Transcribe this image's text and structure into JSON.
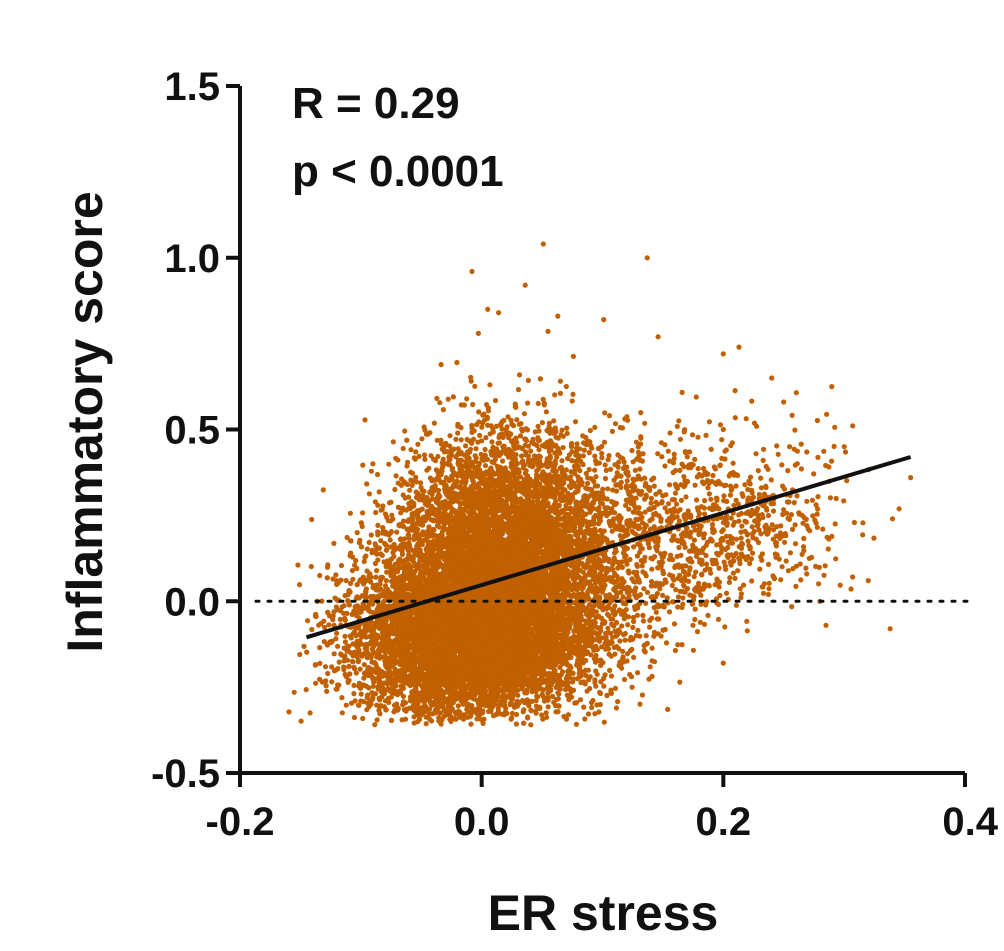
{
  "chart_data": {
    "type": "scatter",
    "title": "",
    "xlabel": "ER stress",
    "ylabel": "Inflammatory score",
    "xlim": [
      -0.2,
      0.4
    ],
    "ylim": [
      -0.5,
      1.5
    ],
    "xticks": [
      "-0.2",
      "0.0",
      "0.2",
      "0.4"
    ],
    "yticks": [
      "-0.5",
      "0.0",
      "0.5",
      "1.0",
      "1.5"
    ],
    "annotations": [
      "R = 0.29",
      "p < 0.0001"
    ],
    "point_color": "#c06000",
    "reference_line_y": 0.0,
    "regression_line": {
      "x": [
        -0.145,
        0.355
      ],
      "y": [
        -0.105,
        0.42
      ]
    },
    "outlier_points": [
      {
        "x": 0.051,
        "y": 1.04
      },
      {
        "x": 0.137,
        "y": 1.0
      },
      {
        "x": -0.008,
        "y": 0.96
      },
      {
        "x": 0.036,
        "y": 0.92
      },
      {
        "x": 0.101,
        "y": 0.82
      },
      {
        "x": 0.005,
        "y": 0.85
      },
      {
        "x": 0.014,
        "y": 0.84
      },
      {
        "x": 0.063,
        "y": 0.83
      },
      {
        "x": 0.146,
        "y": 0.77
      },
      {
        "x": 0.213,
        "y": 0.74
      },
      {
        "x": 0.2,
        "y": 0.72
      },
      {
        "x": 0.24,
        "y": 0.65
      },
      {
        "x": 0.25,
        "y": 0.58
      },
      {
        "x": 0.3,
        "y": 0.45
      },
      {
        "x": 0.355,
        "y": 0.36
      },
      {
        "x": 0.34,
        "y": 0.24
      },
      {
        "x": 0.32,
        "y": 0.06
      },
      {
        "x": 0.28,
        "y": 0.0
      },
      {
        "x": 0.285,
        "y": -0.07
      },
      {
        "x": 0.338,
        "y": -0.08
      },
      {
        "x": 0.2,
        "y": -0.18
      },
      {
        "x": -0.142,
        "y": -0.325
      },
      {
        "x": -0.09,
        "y": 0.4
      },
      {
        "x": -0.12,
        "y": 0.06
      },
      {
        "x": -0.097,
        "y": -0.245
      },
      {
        "x": 0.2,
        "y": 0.5
      },
      {
        "x": 0.233,
        "y": 0.41
      }
    ],
    "clusters": [
      {
        "cx": 0.005,
        "cy": 0.02,
        "sx": 0.05,
        "sy": 0.16,
        "rho": 0.2,
        "n": 6500
      },
      {
        "cx": -0.005,
        "cy": -0.12,
        "sx": 0.05,
        "sy": 0.1,
        "rho": 0.1,
        "n": 4000
      },
      {
        "cx": 0.02,
        "cy": 0.25,
        "sx": 0.04,
        "sy": 0.14,
        "rho": 0.0,
        "n": 2200
      },
      {
        "cx": 0.14,
        "cy": 0.18,
        "sx": 0.06,
        "sy": 0.16,
        "rho": 0.3,
        "n": 900
      },
      {
        "cx": 0.22,
        "cy": 0.2,
        "sx": 0.04,
        "sy": 0.1,
        "rho": 0.2,
        "n": 300
      }
    ]
  }
}
